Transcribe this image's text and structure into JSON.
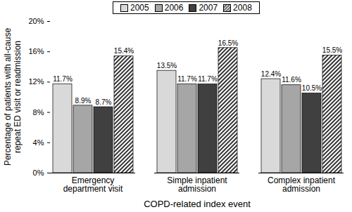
{
  "chart_data": {
    "type": "bar",
    "x_label": "COPD-related index event",
    "y_label": "Percentage of patients with all-cause repeat ED visit or readmission",
    "categories": [
      "Emergency department visit",
      "Simple inpatient admission",
      "Complex inpatient admission"
    ],
    "series": [
      {
        "name": "2005",
        "color": "#d9d9d9",
        "values": [
          11.7,
          13.5,
          12.4
        ],
        "value_labels": [
          "11.7%",
          "13.5%",
          "12.4%"
        ]
      },
      {
        "name": "2006",
        "color": "#a6a6a6",
        "values": [
          8.9,
          11.7,
          11.6
        ],
        "value_labels": [
          "8.9%",
          "11.7%",
          "11.6%"
        ]
      },
      {
        "name": "2007",
        "color": "#404040",
        "values": [
          8.7,
          11.7,
          10.5
        ],
        "value_labels": [
          "8.7%",
          "11.7%",
          "10.5%"
        ]
      },
      {
        "name": "2008",
        "color": "#000000",
        "line_style": "hatched",
        "values": [
          15.4,
          16.5,
          15.5
        ],
        "value_labels": [
          "15.4%",
          "16.5%",
          "15.5%"
        ]
      }
    ],
    "ylim": [
      0,
      20
    ],
    "yticks": [
      {
        "value": 0,
        "label": "0%"
      },
      {
        "value": 4,
        "label": "4%"
      },
      {
        "value": 8,
        "label": "8%"
      },
      {
        "value": 12,
        "label": "12%"
      },
      {
        "value": 16,
        "label": "16%"
      },
      {
        "value": 20,
        "label": "20%"
      }
    ],
    "data_labels": true,
    "legend": "top",
    "grid": false
  }
}
